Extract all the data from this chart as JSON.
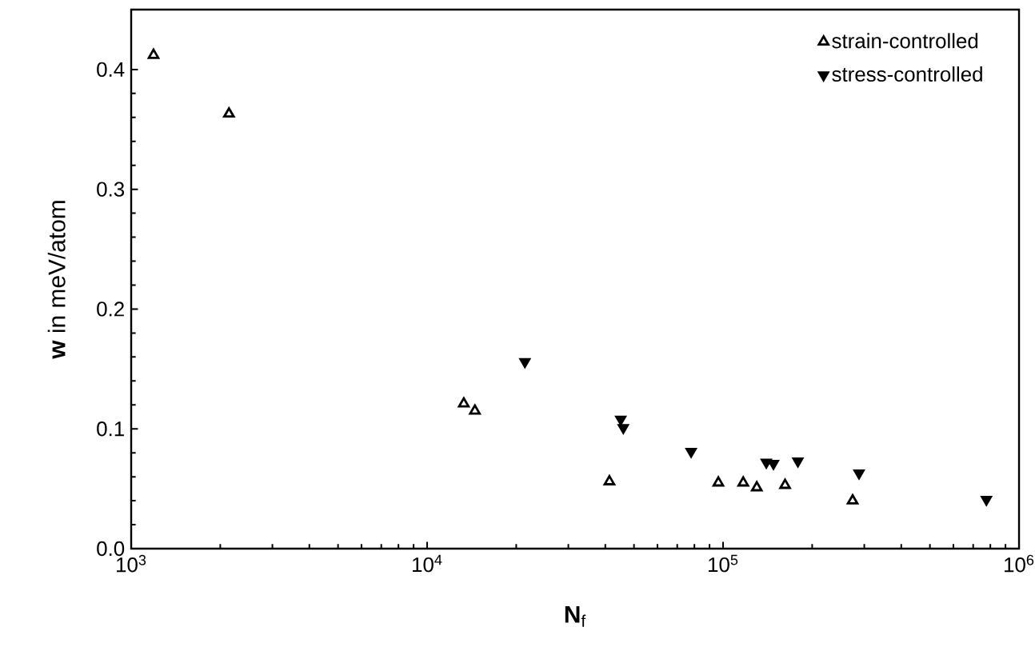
{
  "chart_data": {
    "type": "scatter",
    "xlabel": "**N**$_{f}$",
    "ylabel": "**w** in meV/atom",
    "log": "x",
    "xlim": [
      1000,
      1000000
    ],
    "xticks": [
      {
        "value": 1000,
        "label": "10$^{3}$"
      },
      {
        "value": 10000,
        "label": "10$^{4}$"
      },
      {
        "value": 100000,
        "label": "10$^{5}$"
      },
      {
        "value": 1000000,
        "label": "10$^{6}$"
      }
    ],
    "ylim": [
      0,
      0.45
    ],
    "yticks": [
      {
        "value": 0,
        "label": "0.0"
      },
      {
        "value": 0.1,
        "label": "0.1"
      },
      {
        "value": 0.2,
        "label": "0.2"
      },
      {
        "value": 0.3,
        "label": "0.3"
      },
      {
        "value": 0.4,
        "label": "0.4"
      }
    ],
    "grid": false,
    "legend": "top right",
    "series": [
      {
        "name": "strain-controlled",
        "color": "#000000",
        "marker": "triangle",
        "x": [
          1190,
          2140,
          13300,
          14500,
          41300,
          96400,
          117000,
          130000,
          162000,
          274000
        ],
        "values": [
          0.412,
          0.363,
          0.121,
          0.115,
          0.056,
          0.055,
          0.055,
          0.051,
          0.053,
          0.04
        ]
      },
      {
        "name": "stress-controlled",
        "color": "#000000",
        "marker": "triangle-down",
        "x": [
          21400,
          45100,
          46000,
          78000,
          140000,
          148000,
          179000,
          288000,
          776000
        ],
        "values": [
          0.156,
          0.108,
          0.101,
          0.081,
          0.072,
          0.071,
          0.073,
          0.063,
          0.041
        ]
      }
    ]
  }
}
